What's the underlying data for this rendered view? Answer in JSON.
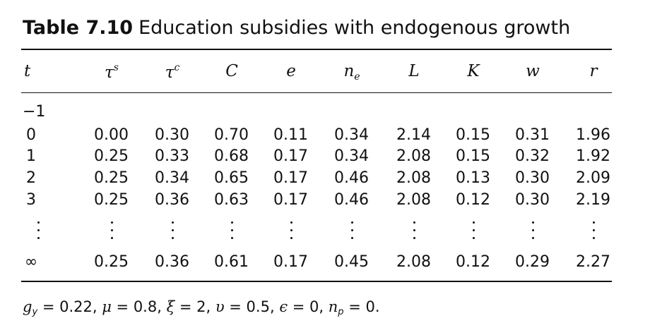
{
  "caption": {
    "number": "Table 7.10",
    "title": "Education subsidies with endogenous growth"
  },
  "columns": [
    {
      "base": "t",
      "sup": "",
      "sub": ""
    },
    {
      "base": "τ",
      "sup": "s",
      "sub": ""
    },
    {
      "base": "τ",
      "sup": "c",
      "sub": ""
    },
    {
      "base": "C",
      "sup": "",
      "sub": ""
    },
    {
      "base": "e",
      "sup": "",
      "sub": ""
    },
    {
      "base": "n",
      "sup": "",
      "sub": "e"
    },
    {
      "base": "L",
      "sup": "",
      "sub": ""
    },
    {
      "base": "K",
      "sup": "",
      "sub": ""
    },
    {
      "base": "w",
      "sup": "",
      "sub": ""
    },
    {
      "base": "r",
      "sup": "",
      "sub": ""
    }
  ],
  "rows": [
    {
      "t": "−1",
      "values": []
    },
    {
      "t": "0",
      "values": [
        "0.00",
        "0.30",
        "0.70",
        "0.11",
        "0.34",
        "2.14",
        "0.15",
        "0.31",
        "1.96"
      ]
    },
    {
      "t": "1",
      "values": [
        "0.25",
        "0.33",
        "0.68",
        "0.17",
        "0.34",
        "2.08",
        "0.15",
        "0.32",
        "1.92"
      ]
    },
    {
      "t": "2",
      "values": [
        "0.25",
        "0.34",
        "0.65",
        "0.17",
        "0.46",
        "2.08",
        "0.13",
        "0.30",
        "2.09"
      ]
    },
    {
      "t": "3",
      "values": [
        "0.25",
        "0.36",
        "0.63",
        "0.17",
        "0.46",
        "2.08",
        "0.12",
        "0.30",
        "2.19"
      ]
    },
    {
      "t": "∞",
      "values": [
        "0.25",
        "0.36",
        "0.61",
        "0.17",
        "0.45",
        "2.08",
        "0.12",
        "0.29",
        "2.27"
      ]
    }
  ],
  "footnote": [
    {
      "sym": "g",
      "sub": "y",
      "val": " = 0.22, "
    },
    {
      "sym": "μ",
      "sub": "",
      "val": " = 0.8, "
    },
    {
      "sym": "ξ",
      "sub": "",
      "val": " = 2, "
    },
    {
      "sym": "υ",
      "sub": "",
      "val": " = 0.5, "
    },
    {
      "sym": "ϵ",
      "sub": "",
      "val": " = 0, "
    },
    {
      "sym": "n",
      "sub": "p",
      "val": " = 0."
    }
  ]
}
